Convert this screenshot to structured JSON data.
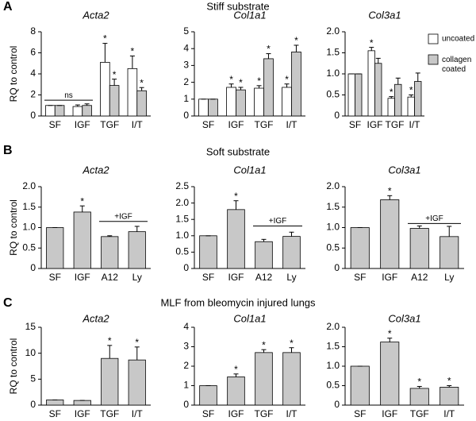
{
  "panels": [
    {
      "letter": "A",
      "title": "Stiff substrate"
    },
    {
      "letter": "B",
      "title": "Soft substrate"
    },
    {
      "letter": "C",
      "title": "MLF from bleomycin injured lungs"
    }
  ],
  "chart_data": [
    {
      "type": "bar",
      "title": "Acta2",
      "ylabel": "RQ to control",
      "categories": [
        "SF",
        "IGF",
        "TGF",
        "I/T"
      ],
      "series": [
        {
          "name": "uncoated",
          "color": "#ffffff",
          "values": [
            1,
            0.9,
            5.1,
            4.5
          ],
          "errors": [
            0,
            0.15,
            1.8,
            1.2
          ],
          "significance": [
            null,
            null,
            "*",
            "*"
          ]
        },
        {
          "name": "collagen coated",
          "color": "#c8c8c8",
          "values": [
            1,
            1,
            2.9,
            2.4
          ],
          "errors": [
            0,
            0.15,
            0.6,
            0.3
          ],
          "significance": [
            null,
            null,
            "*",
            "*"
          ]
        }
      ],
      "ylim": [
        0,
        8
      ],
      "yticks": [
        0,
        2,
        4,
        6,
        8
      ],
      "annotations": [
        {
          "text": "ns",
          "value": 1.5
        }
      ]
    },
    {
      "type": "bar",
      "title": "Col1a1",
      "categories": [
        "SF",
        "IGF",
        "TGF",
        "I/T"
      ],
      "series": [
        {
          "name": "uncoated",
          "color": "#ffffff",
          "values": [
            1,
            1.7,
            1.65,
            1.7
          ],
          "errors": [
            0,
            0.2,
            0.15,
            0.2
          ],
          "significance": [
            null,
            "*",
            "*",
            "*"
          ]
        },
        {
          "name": "collagen coated",
          "color": "#c8c8c8",
          "values": [
            1,
            1.55,
            3.4,
            3.8
          ],
          "errors": [
            0,
            0.15,
            0.3,
            0.4
          ],
          "significance": [
            null,
            "*",
            "*",
            "*"
          ]
        }
      ],
      "ylim": [
        0,
        5
      ],
      "yticks": [
        0,
        1,
        2,
        3,
        4,
        5
      ]
    },
    {
      "type": "bar",
      "title": "Col3a1",
      "categories": [
        "SF",
        "IGF",
        "TGF",
        "I/T"
      ],
      "series": [
        {
          "name": "uncoated",
          "color": "#ffffff",
          "values": [
            1,
            1.55,
            0.42,
            0.45
          ],
          "errors": [
            0,
            0.08,
            0.04,
            0.05
          ],
          "significance": [
            null,
            "*",
            "*",
            "*"
          ]
        },
        {
          "name": "collagen coated",
          "color": "#c8c8c8",
          "values": [
            1,
            1.25,
            0.75,
            0.82
          ],
          "errors": [
            0,
            0.12,
            0.15,
            0.2
          ],
          "significance": [
            null,
            null,
            null,
            null
          ]
        }
      ],
      "ylim": [
        0,
        2
      ],
      "yticks": [
        0,
        0.5,
        {
          "value": 1,
          "label": "1.0"
        },
        1.5,
        {
          "value": 2,
          "label": "2.0"
        }
      ],
      "legend": "right"
    },
    {
      "type": "bar",
      "title": "Acta2",
      "ylabel": "RQ to control",
      "categories": [
        "SF",
        "IGF",
        "A12",
        "Ly"
      ],
      "series": [
        {
          "color": "#c8c8c8",
          "values": [
            1,
            1.38,
            0.78,
            0.9
          ],
          "errors": [
            0,
            0.15,
            0.02,
            0.13
          ],
          "significance": [
            null,
            "*",
            null,
            null
          ]
        }
      ],
      "ylim": [
        0,
        2
      ],
      "yticks": [
        0,
        0.5,
        {
          "value": 1,
          "label": "1.0"
        },
        1.5,
        {
          "value": 2,
          "label": "2.0"
        }
      ],
      "annotations": [
        {
          "text": "+IGF",
          "value": 1.15
        }
      ]
    },
    {
      "type": "bar",
      "title": "Col1a1",
      "categories": [
        "SF",
        "IGF",
        "A12",
        "Ly"
      ],
      "series": [
        {
          "color": "#c8c8c8",
          "values": [
            1,
            1.8,
            0.82,
            0.98
          ],
          "errors": [
            0,
            0.27,
            0.07,
            0.13
          ],
          "significance": [
            null,
            "*",
            null,
            null
          ]
        }
      ],
      "ylim": [
        0,
        2.5
      ],
      "yticks": [
        0,
        0.5,
        {
          "value": 1,
          "label": "1.0"
        },
        1.5,
        {
          "value": 2,
          "label": "2.0"
        },
        2.5
      ],
      "annotations": [
        {
          "text": "+IGF",
          "value": 1.3
        }
      ]
    },
    {
      "type": "bar",
      "title": "Col3a1",
      "categories": [
        "SF",
        "IGF",
        "A12",
        "Ly"
      ],
      "series": [
        {
          "color": "#c8c8c8",
          "values": [
            1,
            1.68,
            0.98,
            0.78
          ],
          "errors": [
            0,
            0.1,
            0.06,
            0.25
          ],
          "significance": [
            null,
            "*",
            null,
            null
          ]
        }
      ],
      "ylim": [
        0,
        2
      ],
      "yticks": [
        0,
        0.5,
        {
          "value": 1,
          "label": "1.0"
        },
        1.5,
        {
          "value": 2,
          "label": "2.0"
        }
      ],
      "annotations": [
        {
          "text": "+IGF",
          "value": 1.1
        }
      ]
    },
    {
      "type": "bar",
      "title": "Acta2",
      "ylabel": "RQ to control",
      "categories": [
        "SF",
        "IGF",
        "TGF",
        "I/T"
      ],
      "series": [
        {
          "color": "#c8c8c8",
          "values": [
            1,
            0.9,
            9,
            8.7
          ],
          "errors": [
            0,
            0,
            2.5,
            2.5
          ],
          "significance": [
            null,
            null,
            "*",
            "*"
          ]
        }
      ],
      "ylim": [
        0,
        15
      ],
      "yticks": [
        0,
        5,
        10,
        15
      ]
    },
    {
      "type": "bar",
      "title": "Col1a1",
      "categories": [
        "SF",
        "IGF",
        "TGF",
        "I/T"
      ],
      "series": [
        {
          "color": "#c8c8c8",
          "values": [
            1,
            1.45,
            2.7,
            2.7
          ],
          "errors": [
            0,
            0.15,
            0.15,
            0.25
          ],
          "significance": [
            null,
            "*",
            "*",
            "*"
          ]
        }
      ],
      "ylim": [
        0,
        4
      ],
      "yticks": [
        0,
        1,
        2,
        3,
        4
      ]
    },
    {
      "type": "bar",
      "title": "Col3a1",
      "categories": [
        "SF",
        "IGF",
        "TGF",
        "I/T"
      ],
      "series": [
        {
          "color": "#c8c8c8",
          "values": [
            1,
            1.62,
            0.43,
            0.46
          ],
          "errors": [
            0,
            0.1,
            0.05,
            0.04
          ],
          "significance": [
            null,
            "*",
            "*",
            "*"
          ]
        }
      ],
      "ylim": [
        0,
        2
      ],
      "yticks": [
        0,
        0.5,
        {
          "value": 1,
          "label": "1.0"
        },
        1.5,
        {
          "value": 2,
          "label": "2.0"
        }
      ]
    }
  ]
}
